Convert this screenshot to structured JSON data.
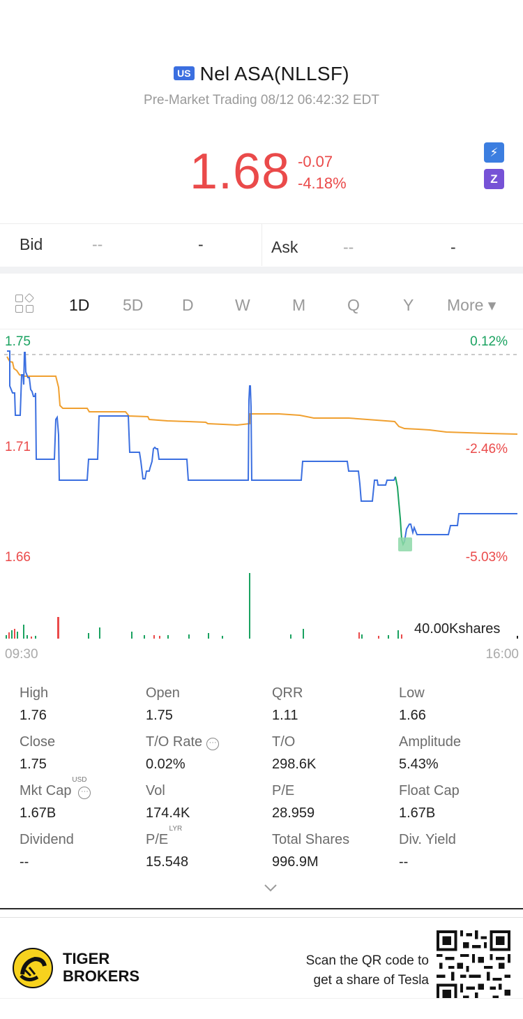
{
  "header": {
    "market_badge": "US",
    "title": "Nel ASA(NLLSF)",
    "subtitle": "Pre-Market Trading 08/12 06:42:32 EDT",
    "price": "1.68",
    "change_abs": "-0.07",
    "change_pct": "-4.18%",
    "badge1": "⚡",
    "badge2": "Z",
    "price_color": "#ea4a4a"
  },
  "quote": {
    "bid_label": "Bid",
    "bid_price": "--",
    "bid_size": "-",
    "ask_label": "Ask",
    "ask_price": "--",
    "ask_size": "-"
  },
  "tabs": [
    "1D",
    "5D",
    "D",
    "W",
    "M",
    "Q",
    "Y",
    "More ▾"
  ],
  "active_tab": "1D",
  "chart_data": {
    "type": "line",
    "y_left_labels": [
      "1.75",
      "1.71",
      "1.66"
    ],
    "y_right_labels": [
      "0.12%",
      "-2.46%",
      "-5.03%"
    ],
    "x_labels": [
      "09:30",
      "16:00"
    ],
    "volume_label": "40.00Kshares",
    "prev_close": 1.75,
    "ylim": [
      1.66,
      1.752
    ],
    "series": [],
    "price_color": "#3b6fe0",
    "avg_color": "#f0a030",
    "down_color": "#1aa260",
    "up_color": "#ea4a4a"
  },
  "stats": [
    {
      "label": "High",
      "value": "1.76"
    },
    {
      "label": "Open",
      "value": "1.75"
    },
    {
      "label": "QRR",
      "value": "1.11"
    },
    {
      "label": "Low",
      "value": "1.66"
    },
    {
      "label": "Close",
      "value": "1.75"
    },
    {
      "label": "T/O Rate",
      "value": "0.02%"
    },
    {
      "label": "T/O",
      "value": "298.6K"
    },
    {
      "label": "Amplitude",
      "value": "5.43%"
    },
    {
      "label": "Mkt Cap",
      "value": "1.67B",
      "sup": "USD"
    },
    {
      "label": "Vol",
      "value": "174.4K"
    },
    {
      "label": "P/E",
      "value": "28.959"
    },
    {
      "label": "Float Cap",
      "value": "1.67B"
    },
    {
      "label": "Dividend",
      "value": "--"
    },
    {
      "label": "P/E",
      "value": "15.548",
      "sup": "LYR"
    },
    {
      "label": "Total Shares",
      "value": "996.9M"
    },
    {
      "label": "Div. Yield",
      "value": "--"
    }
  ],
  "expand_icon": "chevron-down-icon",
  "footer": {
    "brand_line1": "TIGER",
    "brand_line2": "BROKERS",
    "scan_line1": "Scan the QR code to",
    "scan_line2": "get a share of Tesla"
  }
}
